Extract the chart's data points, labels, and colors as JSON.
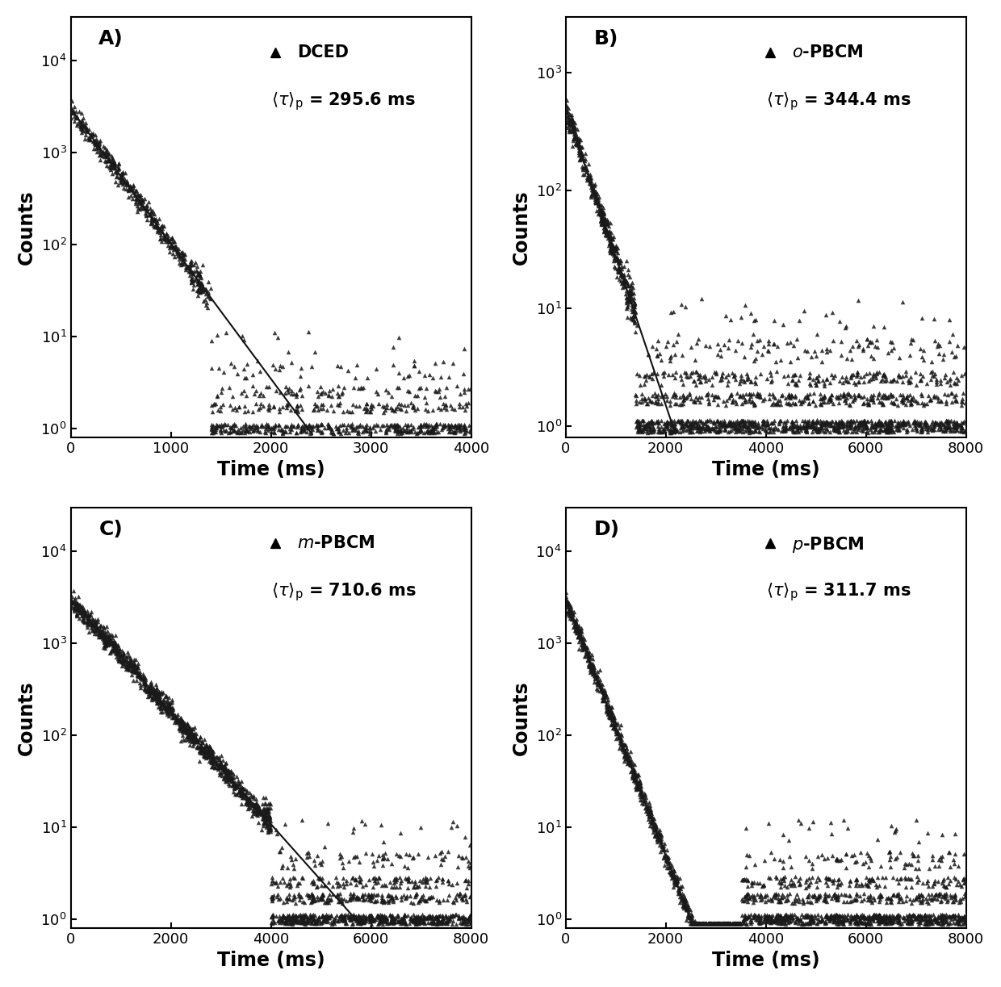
{
  "panels": [
    {
      "label": "A)",
      "compound": "DCED",
      "italic_prefix": false,
      "tau_val": "295.6",
      "xlim": [
        0,
        4000
      ],
      "ylim_log": [
        0.8,
        30000
      ],
      "ytick_vals": [
        1,
        10,
        100,
        1000,
        10000
      ],
      "xtick_vals": [
        0,
        1000,
        2000,
        3000,
        4000
      ],
      "decay_A": 3000,
      "decay_tau": 295.6,
      "noise_start": 1400,
      "noise_dense_start": 1200
    },
    {
      "label": "B)",
      "compound": "o-PBCM",
      "italic_prefix": true,
      "tau_val": "344.4",
      "xlim": [
        0,
        8000
      ],
      "ylim_log": [
        0.8,
        3000
      ],
      "ytick_vals": [
        1,
        10,
        100,
        1000
      ],
      "xtick_vals": [
        0,
        2000,
        4000,
        6000,
        8000
      ],
      "decay_A": 500,
      "decay_tau": 344.4,
      "noise_start": 1400,
      "noise_dense_start": 1200
    },
    {
      "label": "C)",
      "compound": "m-PBCM",
      "italic_prefix": true,
      "tau_val": "710.6",
      "xlim": [
        0,
        8000
      ],
      "ylim_log": [
        0.8,
        30000
      ],
      "ytick_vals": [
        1,
        10,
        100,
        1000,
        10000
      ],
      "xtick_vals": [
        0,
        2000,
        4000,
        6000,
        8000
      ],
      "decay_A": 3000,
      "decay_tau": 710.6,
      "noise_start": 4000,
      "noise_dense_start": 3800
    },
    {
      "label": "D)",
      "compound": "p-PBCM",
      "italic_prefix": true,
      "tau_val": "311.7",
      "xlim": [
        0,
        8000
      ],
      "ylim_log": [
        0.8,
        30000
      ],
      "ytick_vals": [
        1,
        10,
        100,
        1000,
        10000
      ],
      "xtick_vals": [
        0,
        2000,
        4000,
        6000,
        8000
      ],
      "decay_A": 3000,
      "decay_tau": 311.7,
      "noise_start": 3500,
      "noise_dense_start": 3200
    }
  ],
  "marker_size": 16,
  "marker_color": "#1a1a1a",
  "line_color": "#111111",
  "ylabel": "Counts",
  "xlabel": "Time (ms)",
  "label_fontsize": 17,
  "tick_fontsize": 13,
  "panel_label_fontsize": 18
}
